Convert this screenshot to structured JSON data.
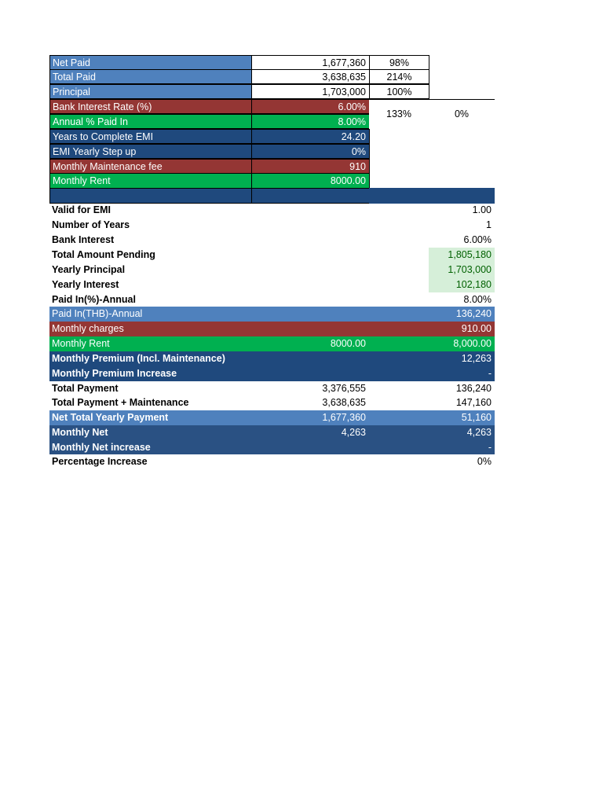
{
  "top": {
    "net_paid": {
      "label": "Net Paid",
      "value": "1,677,360",
      "pct": "98%"
    },
    "total_paid": {
      "label": "Total Paid",
      "value": "3,638,635",
      "pct": "214%"
    },
    "principal": {
      "label": "Principal",
      "value": "1,703,000",
      "pct": "100%"
    },
    "bank_rate": {
      "label": "Bank Interest Rate (%)",
      "value": "6.00%",
      "pct": "133%",
      "extra": "0%"
    },
    "annual_paid_in": {
      "label": "Annual % Paid In",
      "value": "8.00%"
    },
    "years_complete": {
      "label": "Years to Complete EMI",
      "value": "24.20"
    },
    "emi_step": {
      "label": "EMI Yearly Step up",
      "value": "0%"
    },
    "maintenance": {
      "label": "Monthly Maintenance fee",
      "value": "910"
    },
    "rent": {
      "label": "Monthly Rent",
      "value": "8000.00"
    }
  },
  "rows": [
    {
      "label": "Valid for EMI",
      "c2": "",
      "c3": "1.00"
    },
    {
      "label": "Number of Years",
      "c2": "",
      "c3": "1"
    },
    {
      "label": "Bank Interest",
      "c2": "",
      "c3": "6.00%"
    },
    {
      "label": "Total Amount Pending",
      "c2": "",
      "c3": "1,805,180"
    },
    {
      "label": "Yearly Principal",
      "c2": "",
      "c3": "1,703,000"
    },
    {
      "label": "Yearly Interest",
      "c2": "",
      "c3": "102,180"
    },
    {
      "label": "Paid In(%)-Annual",
      "c2": "",
      "c3": "8.00%"
    },
    {
      "label": "Paid In(THB)-Annual",
      "c2": "",
      "c3": "136,240"
    },
    {
      "label": "Monthly charges",
      "c2": "",
      "c3": "910.00"
    },
    {
      "label": "Monthly Rent",
      "c2": "8000.00",
      "c3": "8,000.00"
    },
    {
      "label": "Monthly Premium (Incl. Maintenance)",
      "c2": "",
      "c3": "12,263"
    },
    {
      "label": "Monthly Premium Increase",
      "c2": "",
      "c3": "-"
    },
    {
      "label": "Total Payment",
      "c2": "3,376,555",
      "c3": "136,240"
    },
    {
      "label": "Total Payment + Maintenance",
      "c2": "3,638,635",
      "c3": "147,160"
    },
    {
      "label": "Net Total Yearly Payment",
      "c2": "1,677,360",
      "c3": "51,160"
    },
    {
      "label": "Monthly Net",
      "c2": "4,263",
      "c3": "4,263"
    },
    {
      "label": "Monthly Net increase",
      "c2": "",
      "c3": "-"
    },
    {
      "label": "Percentage Increase",
      "c2": "",
      "c3": "0%"
    }
  ],
  "colors": {
    "blue": "#4f81bd",
    "dark_blue": "#1f497d",
    "red": "#943634",
    "green": "#00b050",
    "light_green": "#d6efd9"
  }
}
